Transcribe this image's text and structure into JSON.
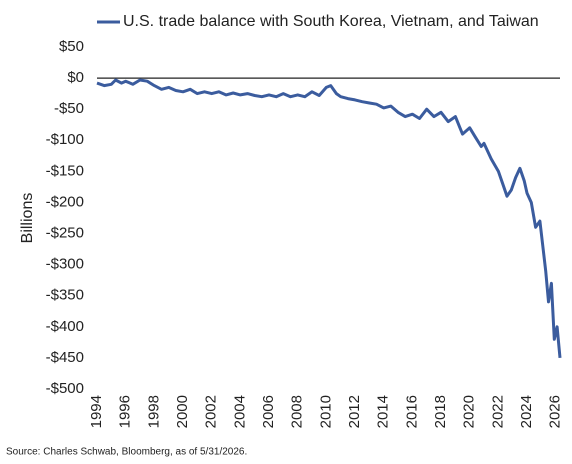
{
  "chart_data": {
    "type": "line",
    "y_label": "Billions",
    "source": "Source: Charles Schwab, Bloomberg, as of 5/31/2026.",
    "x": [
      1994,
      1994.5,
      1995,
      1995.3,
      1995.7,
      1996,
      1996.5,
      1997,
      1997.5,
      1998,
      1998.5,
      1999,
      1999.5,
      2000,
      2000.5,
      2001,
      2001.5,
      2002,
      2002.5,
      2003,
      2003.5,
      2004,
      2004.5,
      2005,
      2005.5,
      2006,
      2006.5,
      2007,
      2007.5,
      2008,
      2008.5,
      2009,
      2009.5,
      2010,
      2010.3,
      2010.7,
      2011,
      2011.5,
      2012,
      2012.5,
      2013,
      2013.5,
      2014,
      2014.5,
      2015,
      2015.5,
      2016,
      2016.5,
      2017,
      2017.5,
      2018,
      2018.5,
      2019,
      2019.5,
      2020,
      2020.4,
      2020.8,
      2021,
      2021.5,
      2022,
      2022.3,
      2022.6,
      2022.9,
      2023.2,
      2023.5,
      2023.8,
      2024,
      2024.3,
      2024.6,
      2024.9,
      2025.1,
      2025.3,
      2025.5,
      2025.7,
      2025.9,
      2026.1,
      2026.3
    ],
    "series": [
      {
        "name": "U.S. trade balance with South Korea, Vietnam, and Taiwan",
        "color": "#3b5c9e",
        "values": [
          -8,
          -12,
          -10,
          -3,
          -8,
          -5,
          -10,
          -3,
          -5,
          -12,
          -18,
          -15,
          -20,
          -22,
          -18,
          -25,
          -22,
          -25,
          -22,
          -27,
          -24,
          -27,
          -25,
          -28,
          -30,
          -27,
          -30,
          -25,
          -30,
          -27,
          -30,
          -22,
          -28,
          -15,
          -12,
          -25,
          -30,
          -33,
          -35,
          -38,
          -40,
          -42,
          -48,
          -45,
          -55,
          -62,
          -58,
          -65,
          -50,
          -62,
          -55,
          -70,
          -62,
          -90,
          -80,
          -95,
          -110,
          -105,
          -130,
          -150,
          -170,
          -190,
          -180,
          -160,
          -145,
          -165,
          -185,
          -200,
          -240,
          -230,
          -270,
          -310,
          -360,
          -330,
          -420,
          -400,
          -450
        ]
      }
    ],
    "xlim": [
      1994,
      2026.3
    ],
    "xticks": [
      1994,
      1996,
      1998,
      2000,
      2002,
      2004,
      2006,
      2008,
      2010,
      2012,
      2014,
      2016,
      2018,
      2020,
      2022,
      2024,
      2026
    ],
    "ylim": [
      -500,
      50
    ],
    "yticks": [
      {
        "value": 50,
        "label": "$50"
      },
      {
        "value": 0,
        "label": "$0"
      },
      {
        "value": -50,
        "label": "-$50"
      },
      {
        "value": -100,
        "label": "-$100"
      },
      {
        "value": -150,
        "label": "-$150"
      },
      {
        "value": -200,
        "label": "-$200"
      },
      {
        "value": -250,
        "label": "-$250"
      },
      {
        "value": -300,
        "label": "-$300"
      },
      {
        "value": -350,
        "label": "-$350"
      },
      {
        "value": -400,
        "label": "-$400"
      },
      {
        "value": -450,
        "label": "-$450"
      },
      {
        "value": -500,
        "label": "-$500"
      }
    ],
    "legend": "top",
    "grid": false
  }
}
